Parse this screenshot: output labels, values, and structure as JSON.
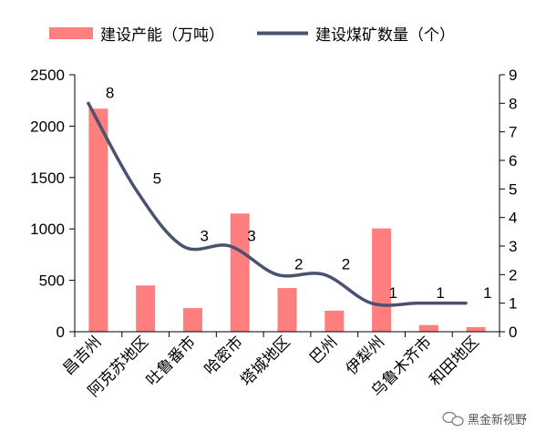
{
  "chart_data": {
    "type": "bar+line",
    "categories": [
      "昌吉州",
      "阿克苏地区",
      "吐鲁番市",
      "哈密市",
      "塔城地区",
      "巴州",
      "伊犁州",
      "乌鲁木齐市",
      "和田地区"
    ],
    "series": [
      {
        "name": "建设产能（万吨）",
        "type": "bar",
        "axis": "left",
        "color": "#ff7f7f",
        "values": [
          2170,
          450,
          230,
          1150,
          425,
          205,
          1005,
          65,
          45
        ]
      },
      {
        "name": "建设煤矿数量（个）",
        "type": "line",
        "axis": "right",
        "color": "#4a5270",
        "values": [
          8,
          5,
          3,
          3,
          2,
          2,
          1,
          1,
          1
        ],
        "data_labels": [
          "8",
          "5",
          "3",
          "3",
          "2",
          "2",
          "1",
          "1",
          "1"
        ]
      }
    ],
    "y_left": {
      "range": [
        0,
        2500
      ],
      "ticks": [
        "0",
        "500",
        "1000",
        "1500",
        "2000",
        "2500"
      ]
    },
    "y_right": {
      "range": [
        0,
        9
      ],
      "ticks": [
        "0",
        "1",
        "2",
        "3",
        "4",
        "5",
        "6",
        "7",
        "8",
        "9"
      ]
    },
    "legend": {
      "placement": "top"
    },
    "grid": false
  },
  "watermark": {
    "text": "黑金新视野",
    "icon": "wechat-icon"
  }
}
